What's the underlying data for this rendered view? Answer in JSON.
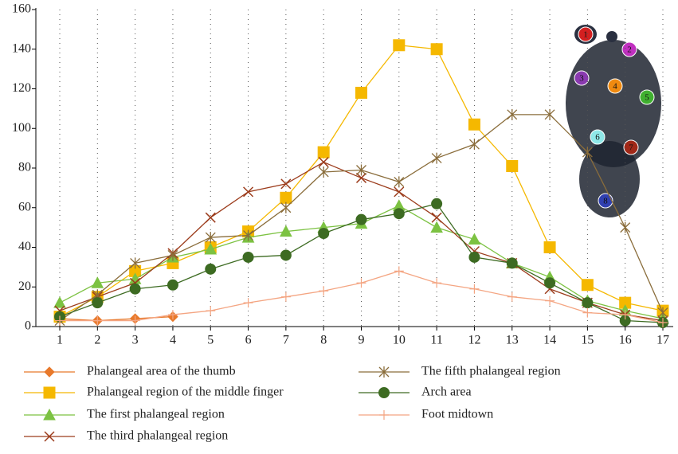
{
  "chart_data": {
    "type": "line",
    "categories": [
      "1",
      "2",
      "3",
      "4",
      "5",
      "6",
      "7",
      "8",
      "9",
      "10",
      "11",
      "12",
      "13",
      "14",
      "15",
      "16",
      "17"
    ],
    "ylim": [
      0,
      160
    ],
    "yticks": [
      0,
      20,
      40,
      60,
      80,
      100,
      120,
      140,
      160
    ],
    "grid": "vertical-dotted",
    "series": [
      {
        "name": "Phalangeal area of the thumb",
        "color": "#e8792b",
        "marker": "diamond",
        "values": [
          4,
          3,
          4,
          5,
          null,
          null,
          null,
          null,
          null,
          null,
          null,
          null,
          null,
          null,
          null,
          null,
          null
        ]
      },
      {
        "name": "Phalangeal region of the middle finger",
        "color": "#f5b800",
        "marker": "square",
        "values": [
          5,
          15,
          28,
          32,
          40,
          48,
          65,
          88,
          118,
          142,
          140,
          102,
          81,
          40,
          21,
          12,
          8
        ]
      },
      {
        "name": "The first phalangeal region",
        "color": "#7cc242",
        "marker": "triangle",
        "values": [
          12,
          22,
          24,
          35,
          39,
          45,
          48,
          50,
          52,
          61,
          50,
          44,
          32,
          25,
          13,
          8,
          4
        ]
      },
      {
        "name": "The third phalangeal region",
        "color": "#9c3c1c",
        "marker": "x",
        "values": [
          8,
          15,
          22,
          37,
          55,
          68,
          72,
          83,
          75,
          68,
          55,
          38,
          32,
          19,
          12,
          6,
          3
        ]
      },
      {
        "name": "The fifth phalangeal region",
        "color": "#8a6d3b",
        "marker": "asterisk",
        "values": [
          3,
          16,
          32,
          36,
          45,
          46,
          60,
          78,
          79,
          73,
          85,
          92,
          107,
          107,
          88,
          50,
          7
        ]
      },
      {
        "name": "Arch area",
        "color": "#3d6b22",
        "marker": "circle",
        "values": [
          5,
          12,
          19,
          21,
          29,
          35,
          36,
          47,
          54,
          57,
          62,
          35,
          32,
          22,
          12,
          3,
          2
        ]
      },
      {
        "name": "Foot midtown",
        "color": "#f4a582",
        "marker": "plus",
        "values": [
          3,
          3,
          3,
          6,
          8,
          12,
          15,
          18,
          22,
          28,
          22,
          19,
          15,
          13,
          7,
          6,
          2
        ]
      }
    ],
    "annotations": [
      {
        "label": "1",
        "color": "#d42020"
      },
      {
        "label": "2",
        "color": "#c030c0"
      },
      {
        "label": "3",
        "color": "#8a3ab0"
      },
      {
        "label": "4",
        "color": "#f08a10"
      },
      {
        "label": "5",
        "color": "#40b030"
      },
      {
        "label": "6",
        "color": "#8fe8e8"
      },
      {
        "label": "7",
        "color": "#a02818"
      },
      {
        "label": "8",
        "color": "#3040b0"
      }
    ]
  }
}
